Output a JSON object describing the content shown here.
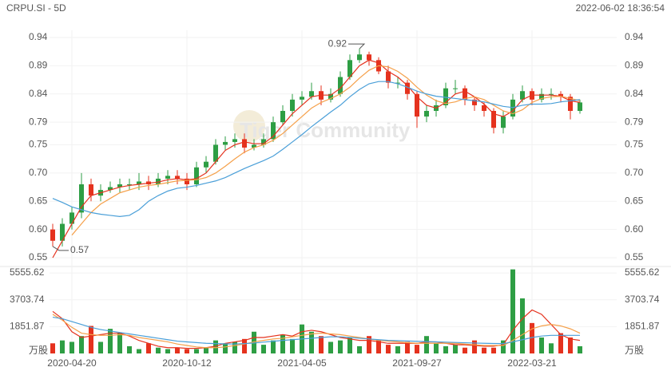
{
  "chart_data": {
    "type": "candlestick",
    "title": "CRPU.SI - 5D",
    "timestamp": "2022-06-02 18:36:54",
    "watermark": "Tiger Community",
    "peak_label": "0.92",
    "trough_label": "0.57",
    "volume_unit": "万股",
    "up_color": "#2e9e44",
    "down_color": "#e5321e",
    "grid": true,
    "categories": [
      null,
      null,
      "2020-04-20",
      null,
      null,
      null,
      null,
      null,
      null,
      null,
      null,
      null,
      null,
      null,
      "2020-10-12",
      null,
      null,
      null,
      null,
      null,
      null,
      null,
      null,
      null,
      null,
      null,
      "2021-04-05",
      null,
      null,
      null,
      null,
      null,
      null,
      null,
      null,
      null,
      null,
      null,
      "2021-09-27",
      null,
      null,
      null,
      null,
      null,
      null,
      null,
      null,
      null,
      null,
      null,
      "2022-03-21",
      null,
      null,
      null,
      null,
      null
    ],
    "open": [
      0.6,
      0.58,
      0.61,
      0.63,
      0.68,
      0.66,
      0.67,
      0.675,
      0.68,
      0.68,
      0.685,
      0.68,
      0.69,
      0.695,
      0.69,
      0.68,
      0.71,
      0.72,
      0.75,
      0.755,
      0.76,
      0.745,
      0.75,
      0.76,
      0.79,
      0.81,
      0.83,
      0.835,
      0.845,
      0.83,
      0.84,
      0.87,
      0.9,
      0.91,
      0.9,
      0.88,
      0.86,
      0.86,
      0.84,
      0.8,
      0.81,
      0.82,
      0.85,
      0.85,
      0.83,
      0.82,
      0.81,
      0.78,
      0.8,
      0.83,
      0.845,
      0.83,
      0.84,
      0.84,
      0.835,
      0.81
    ],
    "high": [
      0.61,
      0.62,
      0.64,
      0.7,
      0.69,
      0.68,
      0.685,
      0.69,
      0.69,
      0.7,
      0.695,
      0.7,
      0.705,
      0.705,
      0.7,
      0.72,
      0.73,
      0.76,
      0.765,
      0.77,
      0.77,
      0.76,
      0.77,
      0.8,
      0.82,
      0.84,
      0.845,
      0.86,
      0.855,
      0.85,
      0.88,
      0.91,
      0.92,
      0.915,
      0.905,
      0.89,
      0.87,
      0.865,
      0.845,
      0.82,
      0.83,
      0.86,
      0.865,
      0.855,
      0.835,
      0.825,
      0.815,
      0.81,
      0.84,
      0.855,
      0.85,
      0.85,
      0.85,
      0.845,
      0.84,
      0.83
    ],
    "low": [
      0.57,
      0.57,
      0.6,
      0.62,
      0.65,
      0.65,
      0.665,
      0.665,
      0.67,
      0.67,
      0.67,
      0.675,
      0.68,
      0.68,
      0.67,
      0.675,
      0.7,
      0.715,
      0.74,
      0.745,
      0.735,
      0.74,
      0.745,
      0.755,
      0.785,
      0.8,
      0.82,
      0.83,
      0.82,
      0.825,
      0.835,
      0.865,
      0.895,
      0.89,
      0.875,
      0.85,
      0.85,
      0.83,
      0.78,
      0.79,
      0.8,
      0.815,
      0.84,
      0.82,
      0.81,
      0.8,
      0.77,
      0.77,
      0.795,
      0.825,
      0.82,
      0.825,
      0.83,
      0.825,
      0.795,
      0.805
    ],
    "close": [
      0.58,
      0.61,
      0.63,
      0.68,
      0.66,
      0.67,
      0.675,
      0.68,
      0.68,
      0.685,
      0.68,
      0.69,
      0.695,
      0.69,
      0.68,
      0.71,
      0.72,
      0.75,
      0.755,
      0.76,
      0.745,
      0.75,
      0.76,
      0.79,
      0.81,
      0.83,
      0.835,
      0.845,
      0.83,
      0.84,
      0.87,
      0.9,
      0.91,
      0.9,
      0.88,
      0.86,
      0.86,
      0.84,
      0.8,
      0.81,
      0.82,
      0.85,
      0.85,
      0.83,
      0.82,
      0.81,
      0.78,
      0.8,
      0.83,
      0.845,
      0.83,
      0.84,
      0.84,
      0.835,
      0.81,
      0.825
    ],
    "series": [
      {
        "color": "#e5321e",
        "values": [
          0.55,
          0.58,
          0.61,
          0.64,
          0.66,
          0.665,
          0.67,
          0.675,
          0.678,
          0.68,
          0.682,
          0.684,
          0.688,
          0.69,
          0.688,
          0.69,
          0.7,
          0.72,
          0.74,
          0.75,
          0.755,
          0.752,
          0.752,
          0.765,
          0.785,
          0.805,
          0.82,
          0.835,
          0.838,
          0.838,
          0.85,
          0.87,
          0.89,
          0.9,
          0.895,
          0.88,
          0.87,
          0.855,
          0.835,
          0.82,
          0.815,
          0.825,
          0.84,
          0.845,
          0.835,
          0.822,
          0.805,
          0.8,
          0.81,
          0.83,
          0.838,
          0.838,
          0.838,
          0.836,
          0.828,
          0.825
        ]
      },
      {
        "color": "#f5a04a",
        "values": [
          null,
          null,
          0.59,
          0.61,
          0.63,
          0.645,
          0.655,
          0.665,
          0.67,
          0.675,
          0.678,
          0.68,
          0.683,
          0.686,
          0.687,
          0.688,
          0.692,
          0.7,
          0.712,
          0.725,
          0.737,
          0.745,
          0.75,
          0.758,
          0.77,
          0.785,
          0.8,
          0.815,
          0.825,
          0.832,
          0.84,
          0.852,
          0.868,
          0.882,
          0.89,
          0.888,
          0.88,
          0.868,
          0.852,
          0.838,
          0.828,
          0.823,
          0.826,
          0.832,
          0.835,
          0.83,
          0.82,
          0.81,
          0.805,
          0.812,
          0.825,
          0.832,
          0.835,
          0.836,
          0.832,
          0.828
        ]
      },
      {
        "color": "#4a9fd8",
        "values": [
          0.655,
          0.648,
          0.64,
          0.635,
          0.63,
          0.627,
          0.625,
          0.623,
          0.625,
          0.635,
          0.65,
          0.66,
          0.668,
          0.673,
          0.675,
          0.678,
          0.682,
          0.686,
          0.692,
          0.7,
          0.708,
          0.715,
          0.722,
          0.73,
          0.742,
          0.755,
          0.768,
          0.782,
          0.795,
          0.808,
          0.82,
          0.835,
          0.848,
          0.858,
          0.862,
          0.862,
          0.858,
          0.852,
          0.845,
          0.84,
          0.836,
          0.834,
          0.832,
          0.83,
          0.828,
          0.826,
          0.822,
          0.818,
          0.816,
          0.82,
          0.822,
          0.822,
          0.823,
          0.826,
          0.828,
          0.83
        ]
      }
    ],
    "ylim": [
      0.55,
      0.94
    ],
    "yticks": [
      0.94,
      0.89,
      0.84,
      0.79,
      0.75,
      {
        "value": 0.7,
        "label": "0.70"
      },
      0.65,
      {
        "value": 0.6,
        "label": "0.60"
      },
      0.55
    ],
    "volume": [
      700,
      900,
      800,
      1200,
      1900,
      800,
      1700,
      1400,
      500,
      300,
      700,
      400,
      300,
      400,
      300,
      300,
      400,
      900,
      700,
      800,
      1000,
      1500,
      600,
      900,
      1300,
      1000,
      2000,
      1500,
      1200,
      800,
      900,
      1100,
      500,
      1200,
      900,
      600,
      500,
      800,
      600,
      1200,
      700,
      500,
      600,
      400,
      900,
      400,
      400,
      900,
      5800,
      3800,
      2100,
      1100,
      700,
      1400,
      1100,
      500
    ],
    "volume_series": [
      {
        "color": "#e5321e",
        "values": [
          2900,
          2400,
          1500,
          1100,
          1200,
          1300,
          1400,
          1400,
          1200,
          900,
          700,
          500,
          400,
          400,
          350,
          350,
          400,
          500,
          700,
          800,
          900,
          1100,
          1100,
          1200,
          1300,
          1200,
          1500,
          1600,
          1500,
          1300,
          1100,
          1000,
          900,
          900,
          800,
          700,
          700,
          700,
          700,
          800,
          800,
          700,
          600,
          600,
          550,
          500,
          500,
          600,
          1600,
          2400,
          3000,
          2700,
          2000,
          1300,
          1000,
          900
        ]
      },
      {
        "color": "#f5a04a",
        "values": [
          2700,
          2300,
          1800,
          1400,
          1300,
          1250,
          1250,
          1300,
          1250,
          1100,
          1000,
          900,
          800,
          650,
          550,
          450,
          400,
          400,
          450,
          550,
          650,
          800,
          900,
          1000,
          1050,
          1150,
          1250,
          1350,
          1400,
          1350,
          1300,
          1200,
          1100,
          1000,
          900,
          850,
          800,
          750,
          700,
          700,
          700,
          700,
          700,
          650,
          600,
          550,
          550,
          550,
          900,
          1300,
          1700,
          1900,
          2000,
          1900,
          1700,
          1400
        ]
      },
      {
        "color": "#4a9fd8",
        "values": [
          2500,
          2400,
          2200,
          2000,
          1800,
          1650,
          1550,
          1450,
          1350,
          1250,
          1150,
          1050,
          950,
          850,
          800,
          750,
          700,
          680,
          660,
          650,
          680,
          720,
          780,
          840,
          900,
          950,
          1000,
          1050,
          1100,
          1150,
          1150,
          1100,
          1050,
          1000,
          950,
          900,
          880,
          860,
          840,
          820,
          800,
          780,
          760,
          740,
          720,
          700,
          690,
          680,
          800,
          950,
          1100,
          1200,
          1250,
          1250,
          1250,
          1250
        ]
      }
    ],
    "vlim": [
      0,
      6000
    ],
    "vticks": [
      5555.62,
      3703.74,
      1851.87
    ]
  }
}
